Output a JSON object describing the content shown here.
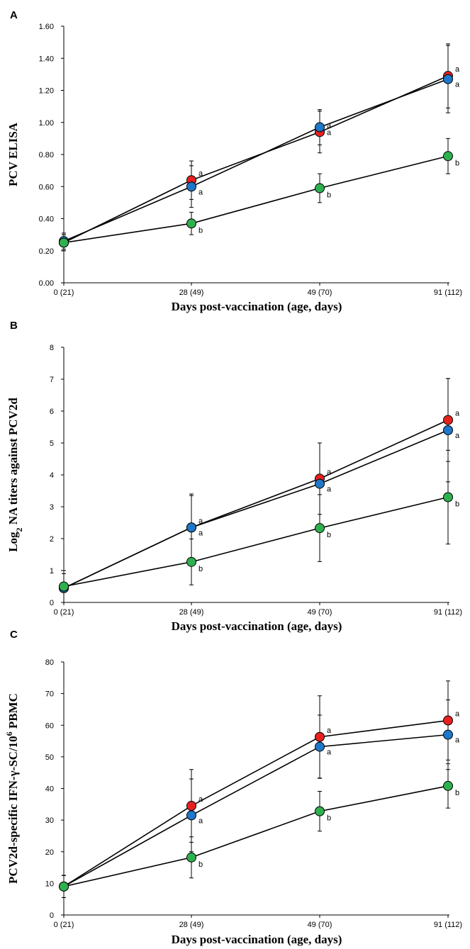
{
  "chart_data": [
    {
      "type": "line",
      "panel": "A",
      "title": "",
      "xlabel": "Days post-vaccination (age, days)",
      "ylabel": "PCV ELISA",
      "ylabel_sub": "",
      "ylabel_tail": "",
      "ylim": [
        0,
        1.6
      ],
      "yticks": [
        "0.00",
        "0.20",
        "0.40",
        "0.60",
        "0.80",
        "1.00",
        "1.20",
        "1.40",
        "1.60"
      ],
      "ytick_values": [
        0,
        0.2,
        0.4,
        0.6,
        0.8,
        1.0,
        1.2,
        1.4,
        1.6
      ],
      "categories": [
        "0 (21)",
        "28 (49)",
        "49 (70)",
        "91 (112)"
      ],
      "grid": false,
      "series": [
        {
          "name": "red",
          "color": "#e8211f",
          "values": [
            0.25,
            0.64,
            0.94,
            1.29
          ],
          "errors": [
            0.05,
            0.12,
            0.13,
            0.2
          ],
          "sig": [
            "",
            "a",
            "a",
            "a"
          ]
        },
        {
          "name": "blue",
          "color": "#1f77c9",
          "values": [
            0.26,
            0.6,
            0.97,
            1.27
          ],
          "errors": [
            0.05,
            0.13,
            0.11,
            0.21
          ],
          "sig": [
            "",
            "a",
            "a",
            "a"
          ]
        },
        {
          "name": "green",
          "color": "#2eb04f",
          "values": [
            0.25,
            0.37,
            0.59,
            0.79
          ],
          "errors": [
            0.05,
            0.07,
            0.09,
            0.11
          ],
          "sig": [
            "",
            "b",
            "b",
            "b"
          ]
        }
      ]
    },
    {
      "type": "line",
      "panel": "B",
      "title": "",
      "xlabel": "Days post-vaccination (age, days)",
      "ylabel": "Log",
      "ylabel_sub": "2",
      "ylabel_tail": " NA titers against PCV2d",
      "ylim": [
        0,
        8
      ],
      "yticks": [
        "0",
        "1",
        "2",
        "3",
        "4",
        "5",
        "6",
        "7",
        "8"
      ],
      "ytick_values": [
        0,
        1,
        2,
        3,
        4,
        5,
        6,
        7,
        8
      ],
      "categories": [
        "0 (21)",
        "28 (49)",
        "49 (70)",
        "91 (112)"
      ],
      "grid": false,
      "series": [
        {
          "name": "red",
          "color": "#e8211f",
          "values": [
            0.45,
            2.35,
            3.88,
            5.72
          ],
          "errors": [
            0.45,
            1.0,
            1.12,
            1.3
          ],
          "sig": [
            "",
            "a",
            "a",
            "a"
          ]
        },
        {
          "name": "blue",
          "color": "#1f77c9",
          "values": [
            0.45,
            2.35,
            3.72,
            5.4
          ],
          "errors": [
            0.45,
            1.05,
            1.28,
            1.62
          ],
          "sig": [
            "",
            "a",
            "a",
            "a"
          ]
        },
        {
          "name": "green",
          "color": "#2eb04f",
          "values": [
            0.5,
            1.27,
            2.33,
            3.3
          ],
          "errors": [
            0.5,
            0.72,
            1.05,
            1.47
          ],
          "sig": [
            "",
            "b",
            "b",
            "b"
          ]
        }
      ]
    },
    {
      "type": "line",
      "panel": "C",
      "title": "",
      "xlabel": "Days post-vaccination (age, days)",
      "ylabel": "PCV2d-specific IFN-γ-SC/10",
      "ylabel_sup": "6",
      "ylabel_tail": " PBMC",
      "ylim": [
        0,
        80
      ],
      "yticks": [
        "0",
        "10",
        "20",
        "30",
        "40",
        "50",
        "60",
        "70",
        "80"
      ],
      "ytick_values": [
        0,
        10,
        20,
        30,
        40,
        50,
        60,
        70,
        80
      ],
      "categories": [
        "0 (21)",
        "28 (49)",
        "49 (70)",
        "91 (112)"
      ],
      "grid": false,
      "series": [
        {
          "name": "red",
          "color": "#e8211f",
          "values": [
            9,
            34.5,
            56.3,
            61.5
          ],
          "errors": [
            3.5,
            11.5,
            13.0,
            12.5
          ],
          "sig": [
            "",
            "a",
            "a",
            "a"
          ]
        },
        {
          "name": "blue",
          "color": "#1f77c9",
          "values": [
            9,
            31.5,
            53.2,
            57.0
          ],
          "errors": [
            3.5,
            11.5,
            10.0,
            11.0
          ],
          "sig": [
            "",
            "a",
            "a",
            "a"
          ]
        },
        {
          "name": "green",
          "color": "#2eb04f",
          "values": [
            9,
            18.2,
            32.8,
            40.8
          ],
          "errors": [
            3.5,
            6.5,
            6.3,
            7.0
          ],
          "sig": [
            "",
            "b",
            "b",
            "b"
          ]
        }
      ]
    }
  ]
}
